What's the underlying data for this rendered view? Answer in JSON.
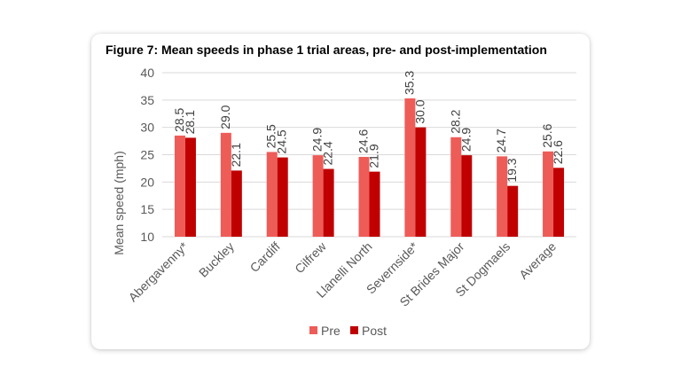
{
  "chart_data": {
    "type": "bar",
    "title": "Figure 7: Mean speeds in phase 1 trial areas, pre- and post-implementation",
    "xlabel": "",
    "ylabel": "Mean speed (mph)",
    "ylim": [
      10,
      40
    ],
    "yticks": [
      10,
      15,
      20,
      25,
      30,
      35,
      40
    ],
    "grid": true,
    "legend_position": "bottom",
    "categories": [
      "Abergavenny*",
      "Buckley",
      "Cardiff",
      "Cilfrew",
      "Llanelli North",
      "Severnside*",
      "St Brides Major",
      "St Dogmaels",
      "Average"
    ],
    "series": [
      {
        "name": "Pre",
        "color": "#EE5C58",
        "values": [
          28.5,
          29.0,
          25.5,
          24.9,
          24.6,
          35.3,
          28.2,
          24.7,
          25.6
        ],
        "labels": [
          "28.5",
          "29.0",
          "25.5",
          "24.9",
          "24.6",
          "35.3",
          "28.2",
          "24.7",
          "25.6"
        ]
      },
      {
        "name": "Post",
        "color": "#C00000",
        "values": [
          28.1,
          22.1,
          24.5,
          22.4,
          21.9,
          30.0,
          24.9,
          19.3,
          22.6
        ],
        "labels": [
          "28.1",
          "22.1",
          "24.5",
          "22.4",
          "21.9",
          "30.0",
          "24.9",
          "19.3",
          "22.6"
        ]
      }
    ]
  }
}
